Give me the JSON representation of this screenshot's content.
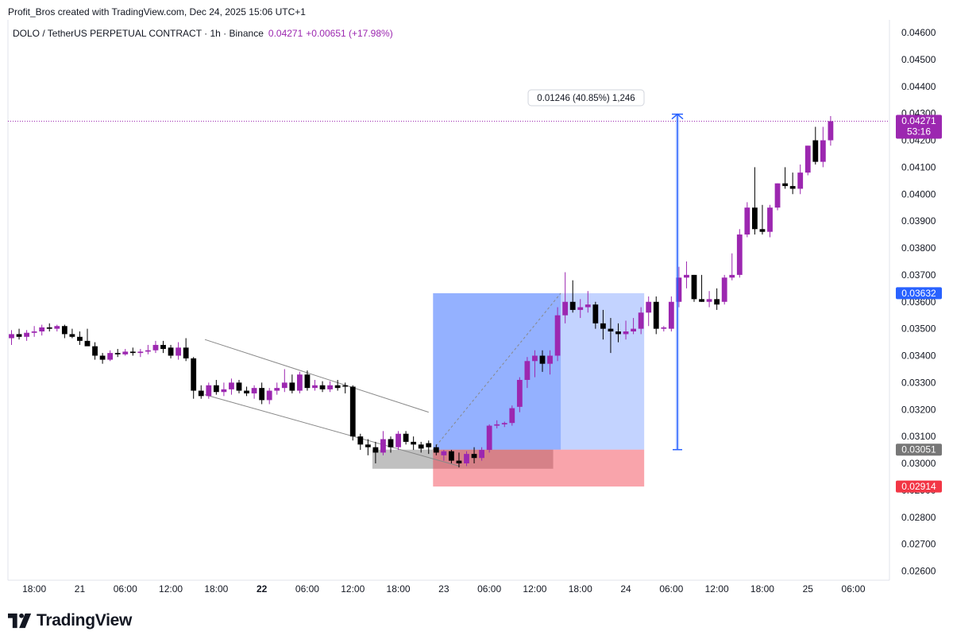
{
  "attribution": "Profit_Bros created with TradingView.com, Dec 24, 2025 15:06 UTC+1",
  "symbol_line": {
    "symbol": "DOLO / TetherUS PERPETUAL CONTRACT · 1h · Binance",
    "price": "0.04271",
    "change": "+0.00651 (+17.98%)"
  },
  "brand": {
    "name": "TradingView"
  },
  "colors": {
    "up": "#9c27b0",
    "down": "#000000",
    "last_price": "#9c27b0",
    "entry": "#2962ff",
    "stop": "#f23645",
    "neutral_tag": "#777777"
  },
  "chart_data": {
    "type": "candlestick",
    "title": "DOLO / TetherUS PERPETUAL CONTRACT · 1h · Binance",
    "interval": "1h",
    "ylim": [
      0.0255,
      0.0465
    ],
    "y_ticks": [
      "0.04600",
      "0.04500",
      "0.04400",
      "0.04300",
      "0.04200",
      "0.04100",
      "0.04000",
      "0.03900",
      "0.03800",
      "0.03700",
      "0.03600",
      "0.03500",
      "0.03400",
      "0.03300",
      "0.03200",
      "0.03100",
      "0.03000",
      "0.02900",
      "0.02800",
      "0.02700",
      "0.02600"
    ],
    "x_ticks": [
      {
        "label": "18:00",
        "bar": 3,
        "bold": false
      },
      {
        "label": "21",
        "bar": 9,
        "bold": false
      },
      {
        "label": "06:00",
        "bar": 15,
        "bold": false
      },
      {
        "label": "12:00",
        "bar": 21,
        "bold": false
      },
      {
        "label": "18:00",
        "bar": 27,
        "bold": false
      },
      {
        "label": "22",
        "bar": 33,
        "bold": true
      },
      {
        "label": "06:00",
        "bar": 39,
        "bold": false
      },
      {
        "label": "12:00",
        "bar": 45,
        "bold": false
      },
      {
        "label": "18:00",
        "bar": 51,
        "bold": false
      },
      {
        "label": "23",
        "bar": 57,
        "bold": false
      },
      {
        "label": "06:00",
        "bar": 63,
        "bold": false
      },
      {
        "label": "12:00",
        "bar": 69,
        "bold": false
      },
      {
        "label": "18:00",
        "bar": 75,
        "bold": false
      },
      {
        "label": "24",
        "bar": 81,
        "bold": false
      },
      {
        "label": "06:00",
        "bar": 87,
        "bold": false
      },
      {
        "label": "12:00",
        "bar": 93,
        "bold": false
      },
      {
        "label": "18:00",
        "bar": 99,
        "bold": false
      },
      {
        "label": "25",
        "bar": 105,
        "bold": false
      },
      {
        "label": "06:00",
        "bar": 111,
        "bold": false
      }
    ],
    "candles": [
      [
        0.03465,
        0.03495,
        0.0344,
        0.0348
      ],
      [
        0.0348,
        0.035,
        0.0346,
        0.0347
      ],
      [
        0.0347,
        0.03495,
        0.03455,
        0.03485
      ],
      [
        0.03485,
        0.0351,
        0.0347,
        0.0349
      ],
      [
        0.0349,
        0.03515,
        0.03475,
        0.03505
      ],
      [
        0.03505,
        0.0352,
        0.0349,
        0.035
      ],
      [
        0.035,
        0.03515,
        0.0349,
        0.0351
      ],
      [
        0.0351,
        0.03515,
        0.03465,
        0.0348
      ],
      [
        0.0348,
        0.035,
        0.03465,
        0.0347
      ],
      [
        0.0347,
        0.0349,
        0.0344,
        0.03455
      ],
      [
        0.03455,
        0.035,
        0.03445,
        0.03435
      ],
      [
        0.03435,
        0.0345,
        0.03385,
        0.034
      ],
      [
        0.034,
        0.0341,
        0.0337,
        0.03385
      ],
      [
        0.03385,
        0.0342,
        0.0338,
        0.0341
      ],
      [
        0.0341,
        0.03425,
        0.03395,
        0.03405
      ],
      [
        0.03405,
        0.03425,
        0.034,
        0.03415
      ],
      [
        0.03415,
        0.0343,
        0.034,
        0.0341
      ],
      [
        0.0341,
        0.03425,
        0.03395,
        0.03415
      ],
      [
        0.03415,
        0.0344,
        0.03405,
        0.0342
      ],
      [
        0.0342,
        0.03455,
        0.0341,
        0.0344
      ],
      [
        0.0344,
        0.03455,
        0.0341,
        0.03425
      ],
      [
        0.0343,
        0.0344,
        0.0339,
        0.034
      ],
      [
        0.034,
        0.0345,
        0.03385,
        0.0343
      ],
      [
        0.0343,
        0.03465,
        0.0338,
        0.0339
      ],
      [
        0.0339,
        0.03395,
        0.0324,
        0.0327
      ],
      [
        0.0327,
        0.0329,
        0.0324,
        0.0325
      ],
      [
        0.0325,
        0.033,
        0.0324,
        0.0329
      ],
      [
        0.0329,
        0.0331,
        0.03255,
        0.03265
      ],
      [
        0.03265,
        0.033,
        0.0325,
        0.03275
      ],
      [
        0.03275,
        0.03315,
        0.03255,
        0.033
      ],
      [
        0.033,
        0.0331,
        0.0326,
        0.0327
      ],
      [
        0.0327,
        0.03285,
        0.0325,
        0.0326
      ],
      [
        0.0326,
        0.0329,
        0.0324,
        0.0328
      ],
      [
        0.0328,
        0.033,
        0.0322,
        0.03235
      ],
      [
        0.03235,
        0.0328,
        0.0322,
        0.0327
      ],
      [
        0.0327,
        0.033,
        0.03255,
        0.0328
      ],
      [
        0.0328,
        0.0335,
        0.03265,
        0.033
      ],
      [
        0.033,
        0.0333,
        0.0326,
        0.0327
      ],
      [
        0.0327,
        0.0334,
        0.0326,
        0.0333
      ],
      [
        0.0333,
        0.03345,
        0.0327,
        0.0328
      ],
      [
        0.0328,
        0.0331,
        0.0327,
        0.0329
      ],
      [
        0.0329,
        0.03305,
        0.03265,
        0.03275
      ],
      [
        0.03275,
        0.03305,
        0.03265,
        0.0329
      ],
      [
        0.0329,
        0.0331,
        0.0327,
        0.0328
      ],
      [
        0.0329,
        0.033,
        0.0326,
        0.03285
      ],
      [
        0.03285,
        0.0329,
        0.03085,
        0.031
      ],
      [
        0.031,
        0.0311,
        0.0305,
        0.0307
      ],
      [
        0.0307,
        0.0309,
        0.0303,
        0.0306
      ],
      [
        0.0306,
        0.0308,
        0.03,
        0.0304
      ],
      [
        0.0304,
        0.0312,
        0.0303,
        0.0309
      ],
      [
        0.0309,
        0.031,
        0.0304,
        0.0306
      ],
      [
        0.0306,
        0.0312,
        0.0305,
        0.0311
      ],
      [
        0.0311,
        0.0312,
        0.0307,
        0.0308
      ],
      [
        0.0308,
        0.031,
        0.0305,
        0.0307
      ],
      [
        0.0307,
        0.0308,
        0.0304,
        0.03055
      ],
      [
        0.03075,
        0.03085,
        0.03035,
        0.0306
      ],
      [
        0.0306,
        0.0307,
        0.0303,
        0.0304
      ],
      [
        0.0303,
        0.0305,
        0.0301,
        0.03045
      ],
      [
        0.03045,
        0.0305,
        0.03,
        0.0301
      ],
      [
        0.0301,
        0.0304,
        0.02985,
        0.03
      ],
      [
        0.03,
        0.03045,
        0.0299,
        0.03035
      ],
      [
        0.03035,
        0.0306,
        0.03,
        0.0302
      ],
      [
        0.0302,
        0.0306,
        0.0301,
        0.0305
      ],
      [
        0.0305,
        0.03145,
        0.0304,
        0.0314
      ],
      [
        0.0314,
        0.0316,
        0.0313,
        0.03145
      ],
      [
        0.03145,
        0.03155,
        0.03135,
        0.0315
      ],
      [
        0.0315,
        0.03215,
        0.0314,
        0.03205
      ],
      [
        0.0321,
        0.0332,
        0.0319,
        0.0331
      ],
      [
        0.0331,
        0.03395,
        0.0328,
        0.0338
      ],
      [
        0.0338,
        0.0342,
        0.0332,
        0.034
      ],
      [
        0.034,
        0.0342,
        0.0334,
        0.0337
      ],
      [
        0.0337,
        0.0342,
        0.0333,
        0.034
      ],
      [
        0.034,
        0.0358,
        0.0338,
        0.0355
      ],
      [
        0.0355,
        0.0371,
        0.0352,
        0.036
      ],
      [
        0.036,
        0.0368,
        0.0356,
        0.0357
      ],
      [
        0.0357,
        0.0361,
        0.0354,
        0.0358
      ],
      [
        0.0358,
        0.0364,
        0.0356,
        0.0359
      ],
      [
        0.0359,
        0.036,
        0.035,
        0.0352
      ],
      [
        0.0352,
        0.0357,
        0.0346,
        0.035
      ],
      [
        0.035,
        0.0354,
        0.0341,
        0.0349
      ],
      [
        0.0349,
        0.0352,
        0.0345,
        0.0348
      ],
      [
        0.0348,
        0.0353,
        0.0346,
        0.0349
      ],
      [
        0.0349,
        0.0354,
        0.0348,
        0.035
      ],
      [
        0.035,
        0.0358,
        0.0348,
        0.0356
      ],
      [
        0.0356,
        0.0362,
        0.0351,
        0.036
      ],
      [
        0.036,
        0.0362,
        0.0348,
        0.035
      ],
      [
        0.035,
        0.0351,
        0.0349,
        0.03505
      ],
      [
        0.035,
        0.0362,
        0.0349,
        0.036
      ],
      [
        0.036,
        0.0373,
        0.0358,
        0.0369
      ],
      [
        0.0369,
        0.0375,
        0.0365,
        0.037
      ],
      [
        0.037,
        0.037,
        0.036,
        0.0361
      ],
      [
        0.0361,
        0.037,
        0.036,
        0.036
      ],
      [
        0.036,
        0.0364,
        0.0358,
        0.0361
      ],
      [
        0.0361,
        0.0365,
        0.0357,
        0.0359
      ],
      [
        0.036,
        0.037,
        0.0359,
        0.0369
      ],
      [
        0.0369,
        0.0378,
        0.0368,
        0.037
      ],
      [
        0.037,
        0.0387,
        0.0369,
        0.0385
      ],
      [
        0.0385,
        0.0397,
        0.0384,
        0.0395
      ],
      [
        0.0395,
        0.041,
        0.0385,
        0.0387
      ],
      [
        0.0387,
        0.0396,
        0.0385,
        0.0386
      ],
      [
        0.0386,
        0.0396,
        0.0384,
        0.0395
      ],
      [
        0.0395,
        0.0404,
        0.0394,
        0.0404
      ],
      [
        0.0404,
        0.041,
        0.0402,
        0.0403
      ],
      [
        0.0403,
        0.0408,
        0.04,
        0.0402
      ],
      [
        0.0402,
        0.0411,
        0.04,
        0.0408
      ],
      [
        0.0408,
        0.0418,
        0.0407,
        0.0418
      ],
      [
        0.042,
        0.0425,
        0.0411,
        0.0412
      ],
      [
        0.0412,
        0.0425,
        0.041,
        0.042
      ],
      [
        0.042,
        0.0429,
        0.0418,
        0.04271
      ]
    ],
    "price_labels": [
      {
        "value": 0.04271,
        "text": "0.04271",
        "sub": "53:16",
        "kind": "last"
      },
      {
        "value": 0.03632,
        "text": "0.03632",
        "kind": "target"
      },
      {
        "value": 0.03051,
        "text": "0.03051",
        "kind": "entry"
      },
      {
        "value": 0.02914,
        "text": "0.02914",
        "kind": "stop"
      }
    ],
    "measure_label": "0.01246 (40.85%) 1,246",
    "long_position": {
      "entry": 0.03051,
      "target": 0.03632,
      "stop": 0.02914,
      "start_bar": 56,
      "end_bar": 83,
      "fill_end_bar": 72
    },
    "grey_zone": {
      "top": 0.03051,
      "bottom": 0.0298,
      "start_bar": 48,
      "end_bar": 71
    },
    "measure": {
      "bar": 87.8,
      "from": 0.03051,
      "to": 0.04297
    },
    "channel": {
      "upper": [
        {
          "bar": 25.5,
          "price": 0.0346
        },
        {
          "bar": 55,
          "price": 0.0319
        }
      ],
      "lower": [
        {
          "bar": 25.5,
          "price": 0.03255
        },
        {
          "bar": 59,
          "price": 0.0299
        }
      ]
    }
  }
}
